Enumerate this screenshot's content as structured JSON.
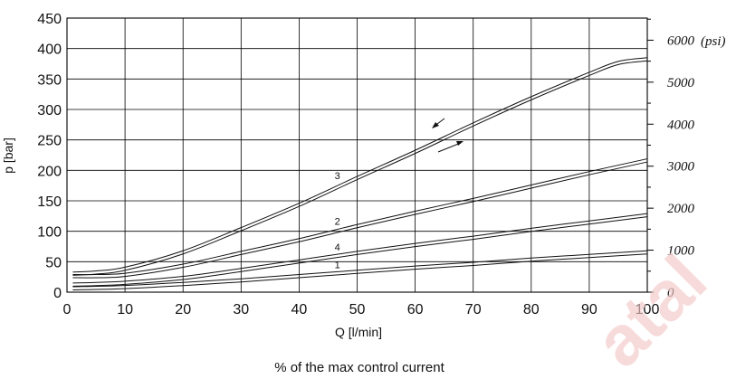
{
  "chart_data": {
    "type": "line",
    "xlabel": "Q [l/min]",
    "ylabel": "p [bar]",
    "xlim": [
      0,
      100
    ],
    "ylim": [
      0,
      450
    ],
    "xticks": [
      0,
      10,
      20,
      30,
      40,
      50,
      60,
      70,
      80,
      90,
      100
    ],
    "yticks": [
      0,
      50,
      100,
      150,
      200,
      250,
      300,
      350,
      400,
      450
    ],
    "secondary_y": {
      "unit_label": "(psi)",
      "ticks": [
        0,
        1000,
        2000,
        3000,
        4000,
        5000,
        6000
      ],
      "ylim": [
        0,
        6526
      ]
    },
    "grid": true,
    "footer": "% of the max control current",
    "watermark": "atal",
    "hysteresis_note": "double lines, arrows indicate increasing and decreasing",
    "series": [
      {
        "name": "1",
        "x": [
          1,
          10,
          20,
          30,
          40,
          50,
          60,
          70,
          80,
          90,
          100
        ],
        "y": [
          6,
          8,
          13,
          19,
          26,
          33,
          40,
          46,
          53,
          59,
          65
        ]
      },
      {
        "name": "4",
        "x": [
          1,
          5,
          10,
          20,
          30,
          40,
          50,
          60,
          70,
          80,
          90,
          100
        ],
        "y": [
          12,
          13,
          15,
          23,
          36,
          50,
          64,
          77,
          89,
          102,
          114,
          126
        ]
      },
      {
        "name": "2",
        "x": [
          1,
          5,
          10,
          20,
          30,
          40,
          50,
          60,
          70,
          80,
          90,
          100
        ],
        "y": [
          26,
          26,
          28,
          43,
          64,
          85,
          108,
          130,
          151,
          173,
          195,
          216
        ]
      },
      {
        "name": "3",
        "x": [
          1,
          5,
          10,
          20,
          30,
          40,
          50,
          60,
          70,
          80,
          90,
          95,
          100
        ],
        "y": [
          30,
          32,
          38,
          65,
          103,
          143,
          187,
          230,
          275,
          318,
          358,
          376,
          382
        ]
      }
    ]
  }
}
